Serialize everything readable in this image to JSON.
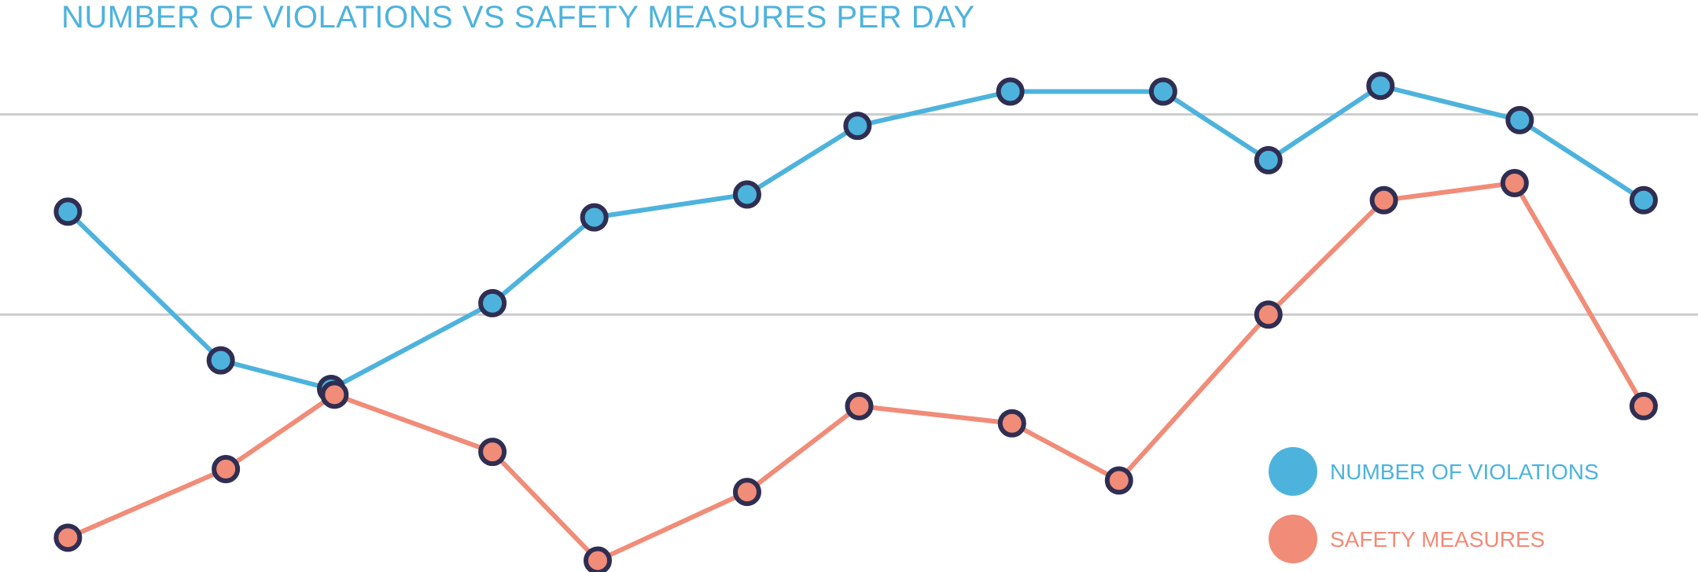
{
  "colors": {
    "violations": "#4db3dd",
    "safety": "#f08c78",
    "marker_outline": "#2f2e52",
    "grid": "#cccccc",
    "title": "#4db3dd"
  },
  "chart_data": {
    "type": "line",
    "title": "NUMBER OF VIOLATIONS VS SAFETY MEASURES PER DAY",
    "xlabel": "",
    "ylabel": "",
    "grid": true,
    "legend_position": "bottom-right",
    "y_gridlines": [
      0.45,
      0.8
    ],
    "ylim": [
      0,
      1
    ],
    "series": [
      {
        "name": "NUMBER OF VIOLATIONS",
        "color": "#4db3dd",
        "x": [
          0.04,
          0.13,
          0.195,
          0.29,
          0.35,
          0.44,
          0.505,
          0.595,
          0.685,
          0.747,
          0.813,
          0.895,
          0.968
        ],
        "values": [
          0.63,
          0.37,
          0.32,
          0.47,
          0.62,
          0.66,
          0.78,
          0.84,
          0.84,
          0.72,
          0.85,
          0.79,
          0.65
        ]
      },
      {
        "name": "SAFETY MEASURES",
        "color": "#f08c78",
        "x": [
          0.04,
          0.133,
          0.197,
          0.29,
          0.352,
          0.44,
          0.506,
          0.596,
          0.659,
          0.747,
          0.815,
          0.892,
          0.968
        ],
        "values": [
          0.06,
          0.18,
          0.31,
          0.21,
          0.02,
          0.14,
          0.29,
          0.26,
          0.16,
          0.45,
          0.65,
          0.68,
          0.29
        ]
      }
    ]
  }
}
